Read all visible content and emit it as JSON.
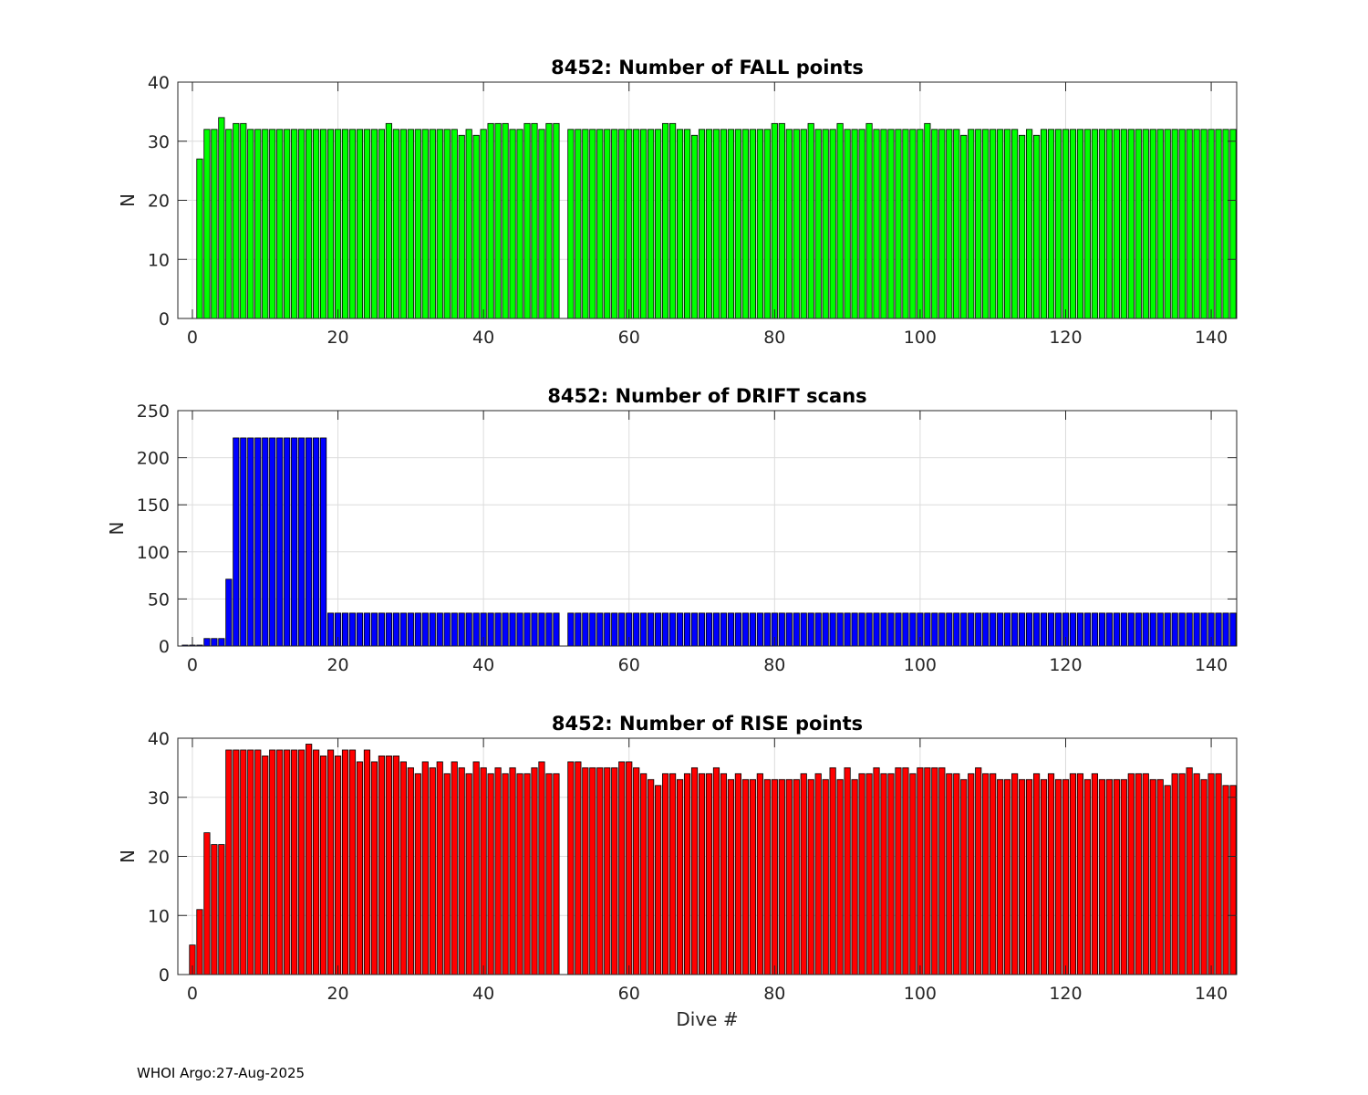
{
  "footer": "WHOI Argo:27-Aug-2025",
  "colors": {
    "fall": "#00ff00",
    "drift": "#0000ff",
    "rise": "#ff0000",
    "edge": "#000000",
    "grid": "#dcdcdc",
    "axis": "#262626"
  },
  "chart_data": [
    {
      "type": "bar",
      "title": "8452: Number of FALL points",
      "xlabel": "",
      "ylabel": "N",
      "xlim": [
        -2,
        143.5
      ],
      "ylim": [
        0,
        40
      ],
      "xticks": [
        0,
        20,
        40,
        60,
        80,
        100,
        120,
        140
      ],
      "yticks": [
        0,
        10,
        20,
        30,
        40
      ],
      "grid": true,
      "color": "#00ff00",
      "x": [
        1,
        2,
        3,
        4,
        5,
        6,
        7,
        8,
        9,
        10,
        11,
        12,
        13,
        14,
        15,
        16,
        17,
        18,
        19,
        20,
        21,
        22,
        23,
        24,
        25,
        26,
        27,
        28,
        29,
        30,
        31,
        32,
        33,
        34,
        35,
        36,
        37,
        38,
        39,
        40,
        41,
        42,
        43,
        44,
        45,
        46,
        47,
        48,
        49,
        50,
        52,
        53,
        54,
        55,
        56,
        57,
        58,
        59,
        60,
        61,
        62,
        63,
        64,
        65,
        66,
        67,
        68,
        69,
        70,
        71,
        72,
        73,
        74,
        75,
        76,
        77,
        78,
        79,
        80,
        81,
        82,
        83,
        84,
        85,
        86,
        87,
        88,
        89,
        90,
        91,
        92,
        93,
        94,
        95,
        96,
        97,
        98,
        99,
        100,
        101,
        102,
        103,
        104,
        105,
        106,
        107,
        108,
        109,
        110,
        111,
        112,
        113,
        114,
        115,
        116,
        117,
        118,
        119,
        120,
        121,
        122,
        123,
        124,
        125,
        126,
        127,
        128,
        129,
        130,
        131,
        132,
        133,
        134,
        135,
        136,
        137,
        138,
        139,
        140,
        141,
        142,
        143
      ],
      "values": [
        27,
        32,
        32,
        34,
        32,
        33,
        33,
        32,
        32,
        32,
        32,
        32,
        32,
        32,
        32,
        32,
        32,
        32,
        32,
        32,
        32,
        32,
        32,
        32,
        32,
        32,
        33,
        32,
        32,
        32,
        32,
        32,
        32,
        32,
        32,
        32,
        31,
        32,
        31,
        32,
        33,
        33,
        33,
        32,
        32,
        33,
        33,
        32,
        33,
        33,
        32,
        32,
        32,
        32,
        32,
        32,
        32,
        32,
        32,
        32,
        32,
        32,
        32,
        33,
        33,
        32,
        32,
        31,
        32,
        32,
        32,
        32,
        32,
        32,
        32,
        32,
        32,
        32,
        33,
        33,
        32,
        32,
        32,
        33,
        32,
        32,
        32,
        33,
        32,
        32,
        32,
        33,
        32,
        32,
        32,
        32,
        32,
        32,
        32,
        33,
        32,
        32,
        32,
        32,
        31,
        32,
        32,
        32,
        32,
        32,
        32,
        32,
        31,
        32,
        31,
        32,
        32,
        32,
        32,
        32,
        32,
        32,
        32,
        32,
        32,
        32,
        32,
        32,
        32,
        32,
        32,
        32,
        32,
        32,
        32,
        32,
        32,
        32,
        32,
        32,
        32,
        32
      ]
    },
    {
      "type": "bar",
      "title": "8452: Number of DRIFT scans",
      "xlabel": "",
      "ylabel": "N",
      "xlim": [
        -2,
        143.5
      ],
      "ylim": [
        0,
        250
      ],
      "xticks": [
        0,
        20,
        40,
        60,
        80,
        100,
        120,
        140
      ],
      "yticks": [
        0,
        50,
        100,
        150,
        200,
        250
      ],
      "grid": true,
      "color": "#0000ff",
      "x": [
        -1,
        0,
        1,
        2,
        3,
        4,
        5,
        6,
        7,
        8,
        9,
        10,
        11,
        12,
        13,
        14,
        15,
        16,
        17,
        18,
        19,
        20,
        21,
        22,
        23,
        24,
        25,
        26,
        27,
        28,
        29,
        30,
        31,
        32,
        33,
        34,
        35,
        36,
        37,
        38,
        39,
        40,
        41,
        42,
        43,
        44,
        45,
        46,
        47,
        48,
        49,
        50,
        52,
        53,
        54,
        55,
        56,
        57,
        58,
        59,
        60,
        61,
        62,
        63,
        64,
        65,
        66,
        67,
        68,
        69,
        70,
        71,
        72,
        73,
        74,
        75,
        76,
        77,
        78,
        79,
        80,
        81,
        82,
        83,
        84,
        85,
        86,
        87,
        88,
        89,
        90,
        91,
        92,
        93,
        94,
        95,
        96,
        97,
        98,
        99,
        100,
        101,
        102,
        103,
        104,
        105,
        106,
        107,
        108,
        109,
        110,
        111,
        112,
        113,
        114,
        115,
        116,
        117,
        118,
        119,
        120,
        121,
        122,
        123,
        124,
        125,
        126,
        127,
        128,
        129,
        130,
        131,
        132,
        133,
        134,
        135,
        136,
        137,
        138,
        139,
        140,
        141,
        142,
        143
      ],
      "values": [
        1,
        1,
        1,
        8,
        8,
        8,
        71,
        221,
        221,
        221,
        221,
        221,
        221,
        221,
        221,
        221,
        221,
        221,
        221,
        221,
        35,
        35,
        35,
        35,
        35,
        35,
        35,
        35,
        35,
        35,
        35,
        35,
        35,
        35,
        35,
        35,
        35,
        35,
        35,
        35,
        35,
        35,
        35,
        35,
        35,
        35,
        35,
        35,
        35,
        35,
        35,
        35,
        35,
        35,
        35,
        35,
        35,
        35,
        35,
        35,
        35,
        35,
        35,
        35,
        35,
        35,
        35,
        35,
        35,
        35,
        35,
        35,
        35,
        35,
        35,
        35,
        35,
        35,
        35,
        35,
        35,
        35,
        35,
        35,
        35,
        35,
        35,
        35,
        35,
        35,
        35,
        35,
        35,
        35,
        35,
        35,
        35,
        35,
        35,
        35,
        35,
        35,
        35,
        35,
        35,
        35,
        35,
        35,
        35,
        35,
        35,
        35,
        35,
        35,
        35,
        35,
        35,
        35,
        35,
        35,
        35,
        35,
        35,
        35,
        35,
        35,
        35,
        35,
        35,
        35,
        35,
        35,
        35,
        35,
        35,
        35,
        35,
        35,
        35,
        35,
        35,
        35,
        35,
        35
      ]
    },
    {
      "type": "bar",
      "title": "8452: Number of RISE points",
      "xlabel": "Dive #",
      "ylabel": "N",
      "xlim": [
        -2,
        143.5
      ],
      "ylim": [
        0,
        40
      ],
      "xticks": [
        0,
        20,
        40,
        60,
        80,
        100,
        120,
        140
      ],
      "yticks": [
        0,
        10,
        20,
        30,
        40
      ],
      "grid": true,
      "color": "#ff0000",
      "x": [
        0,
        1,
        2,
        3,
        4,
        5,
        6,
        7,
        8,
        9,
        10,
        11,
        12,
        13,
        14,
        15,
        16,
        17,
        18,
        19,
        20,
        21,
        22,
        23,
        24,
        25,
        26,
        27,
        28,
        29,
        30,
        31,
        32,
        33,
        34,
        35,
        36,
        37,
        38,
        39,
        40,
        41,
        42,
        43,
        44,
        45,
        46,
        47,
        48,
        49,
        50,
        52,
        53,
        54,
        55,
        56,
        57,
        58,
        59,
        60,
        61,
        62,
        63,
        64,
        65,
        66,
        67,
        68,
        69,
        70,
        71,
        72,
        73,
        74,
        75,
        76,
        77,
        78,
        79,
        80,
        81,
        82,
        83,
        84,
        85,
        86,
        87,
        88,
        89,
        90,
        91,
        92,
        93,
        94,
        95,
        96,
        97,
        98,
        99,
        100,
        101,
        102,
        103,
        104,
        105,
        106,
        107,
        108,
        109,
        110,
        111,
        112,
        113,
        114,
        115,
        116,
        117,
        118,
        119,
        120,
        121,
        122,
        123,
        124,
        125,
        126,
        127,
        128,
        129,
        130,
        131,
        132,
        133,
        134,
        135,
        136,
        137,
        138,
        139,
        140,
        141,
        142,
        143
      ],
      "values": [
        5,
        11,
        24,
        22,
        22,
        38,
        38,
        38,
        38,
        38,
        37,
        38,
        38,
        38,
        38,
        38,
        39,
        38,
        37,
        38,
        37,
        38,
        38,
        36,
        38,
        36,
        37,
        37,
        37,
        36,
        35,
        34,
        36,
        35,
        36,
        34,
        36,
        35,
        34,
        36,
        35,
        34,
        35,
        34,
        35,
        34,
        34,
        35,
        36,
        34,
        34,
        36,
        36,
        35,
        35,
        35,
        35,
        35,
        36,
        36,
        35,
        34,
        33,
        32,
        34,
        34,
        33,
        34,
        35,
        34,
        34,
        35,
        34,
        33,
        34,
        33,
        33,
        34,
        33,
        33,
        33,
        33,
        33,
        34,
        33,
        34,
        33,
        35,
        33,
        35,
        33,
        34,
        34,
        35,
        34,
        34,
        35,
        35,
        34,
        35,
        35,
        35,
        35,
        34,
        34,
        33,
        34,
        35,
        34,
        34,
        33,
        33,
        34,
        33,
        33,
        34,
        33,
        34,
        33,
        33,
        34,
        34,
        33,
        34,
        33,
        33,
        33,
        33,
        34,
        34,
        34,
        33,
        33,
        32,
        34,
        34,
        35,
        34,
        33,
        34,
        34,
        32,
        32
      ]
    }
  ]
}
